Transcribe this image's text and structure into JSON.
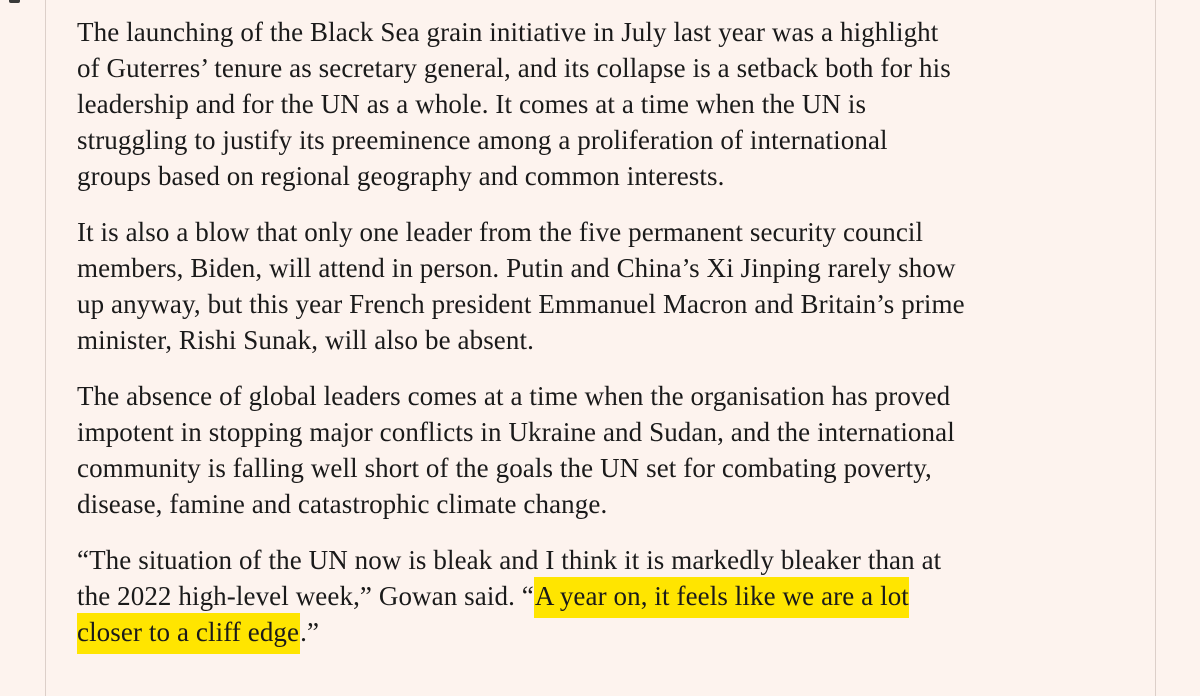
{
  "theme": {
    "bg": "#fdf3ee",
    "rule": "#dccfc9",
    "text": "#1a1a1a",
    "highlight": "#ffe500"
  },
  "article": {
    "paragraphs": [
      {
        "text": "The launching of the Black Sea grain initiative in July last year was a highlight of Guterres’ tenure as secretary general, and its collapse is a setback both for his leadership and for the UN as a whole. It comes at a time when the UN is struggling to justify its preeminence among a proliferation of international groups based on regional geography and common interests."
      },
      {
        "text": "It is also a blow that only one leader from the five permanent security council members, Biden, will attend in person. Putin and China’s Xi Jinping rarely show up anyway, but this year French president Emmanuel Macron and Britain’s prime minister, Rishi Sunak, will also be absent."
      },
      {
        "text": "The absence of global leaders comes at a time when the organisation has proved impotent in stopping major conflicts in Ukraine and Sudan, and the international community is falling well short of the goals the UN set for combating poverty, disease, famine and catastrophic climate change."
      },
      {
        "segments": [
          {
            "text": "“The situation of the UN now is bleak and I think it is markedly bleaker than at the 2022 high-level week,” Gowan said. “",
            "highlight": false
          },
          {
            "text": "A year on, it feels like we are a lot closer to a cliff edge",
            "highlight": true
          },
          {
            "text": ".”",
            "highlight": false
          }
        ]
      }
    ]
  }
}
